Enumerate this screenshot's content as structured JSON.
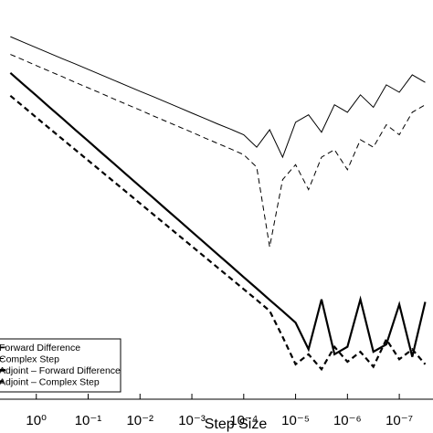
{
  "chart_data": {
    "type": "line",
    "xlabel": "Step Size",
    "xscale": "log",
    "yscale": "log",
    "x_reversed": true,
    "xlim": [
      5.012,
      2.239e-08
    ],
    "ylim": [
      1e-16,
      1
    ],
    "xticks": [
      {
        "value": 1,
        "label": "10⁰"
      },
      {
        "value": 0.1,
        "label": "10⁻¹"
      },
      {
        "value": 0.01,
        "label": "10⁻²"
      },
      {
        "value": 0.001,
        "label": "10⁻³"
      },
      {
        "value": 0.0001,
        "label": "10⁻⁴"
      },
      {
        "value": 1e-05,
        "label": "10⁻⁵"
      },
      {
        "value": 1e-06,
        "label": "10⁻⁶"
      },
      {
        "value": 1e-07,
        "label": "10⁻⁷"
      }
    ],
    "legend": "lower left",
    "x": [
      3.162,
      1.778,
      1,
      0.5623,
      0.3162,
      0.1778,
      0.1,
      0.05623,
      0.03162,
      0.01778,
      0.01,
      0.005623,
      0.003162,
      0.001778,
      0.001,
      0.0005623,
      0.0003162,
      0.0001778,
      0.0001,
      5.623e-05,
      3.162e-05,
      1.778e-05,
      1e-05,
      5.623e-06,
      3.162e-06,
      1.778e-06,
      1e-06,
      5.623e-07,
      3.162e-07,
      1.778e-07,
      1e-07,
      5.623e-08,
      3.162e-08
    ],
    "series": [
      {
        "name": "Forward Difference",
        "color": "#000000",
        "linestyle": "solid",
        "linewidth": 1,
        "values": [
          0.0339,
          0.0204,
          0.0123,
          0.00741,
          0.00447,
          0.00275,
          0.00166,
          0.001,
          0.000603,
          0.000363,
          0.000219,
          0.000135,
          8.13e-05,
          4.9e-05,
          2.95e-05,
          1.78e-05,
          1.07e-05,
          6.61e-06,
          3.98e-06,
          1.26e-06,
          6.31e-06,
          5.01e-07,
          1.26e-05,
          2.51e-05,
          5.01e-06,
          6.31e-05,
          3.16e-05,
          0.000158,
          5.01e-05,
          0.000398,
          0.0002,
          0.001,
          0.000501
        ]
      },
      {
        "name": "Complex Step",
        "color": "#000000",
        "linestyle": "dashed",
        "linewidth": 1,
        "values": [
          0.00661,
          0.00398,
          0.00234,
          0.00141,
          0.000851,
          0.000501,
          0.000302,
          0.000182,
          0.000107,
          6.46e-05,
          3.89e-05,
          2.29e-05,
          1.38e-05,
          8.32e-06,
          5.01e-06,
          2.95e-06,
          1.78e-06,
          1.07e-06,
          6.31e-07,
          2e-07,
          1.26e-10,
          6.31e-08,
          2.51e-07,
          2.51e-08,
          5.01e-07,
          1e-06,
          1.58e-07,
          2.51e-06,
          1.26e-06,
          1e-05,
          3.98e-06,
          3.16e-05,
          6.31e-05
        ]
      },
      {
        "name": "Adjoint – Forward Difference",
        "color": "#000000",
        "linestyle": "solid",
        "linewidth": 2.2,
        "values": [
          0.0012,
          0.000417,
          0.000148,
          5.13e-05,
          1.82e-05,
          6.31e-06,
          2.24e-06,
          7.76e-07,
          2.75e-07,
          9.55e-08,
          3.39e-08,
          1.2e-08,
          4.17e-09,
          1.48e-09,
          5.13e-10,
          1.82e-10,
          6.31e-11,
          2.24e-11,
          7.76e-12,
          2.75e-12,
          9.55e-13,
          3.39e-13,
          1.17e-13,
          1e-14,
          1e-12,
          6.31e-15,
          1.26e-14,
          1e-12,
          7.94e-15,
          1.58e-14,
          6.31e-13,
          5.01e-15,
          7.94e-13
        ]
      },
      {
        "name": "Adjoint – Complex Step",
        "color": "#000000",
        "linestyle": "dashed",
        "linewidth": 2.2,
        "values": [
          0.000145,
          5.37e-05,
          1.95e-05,
          7.24e-06,
          2.69e-06,
          1e-06,
          3.72e-07,
          1.38e-07,
          5.13e-08,
          1.91e-08,
          7.08e-09,
          2.63e-09,
          9.77e-10,
          3.63e-10,
          1.35e-10,
          5.01e-11,
          1.86e-11,
          6.92e-12,
          2.57e-12,
          9.55e-13,
          3.47e-13,
          3.16e-14,
          2.51e-15,
          6.31e-15,
          1.58e-15,
          1.26e-14,
          3.16e-15,
          7.94e-15,
          2e-15,
          2.51e-14,
          3.98e-15,
          1e-14,
          2.51e-15
        ]
      }
    ]
  }
}
